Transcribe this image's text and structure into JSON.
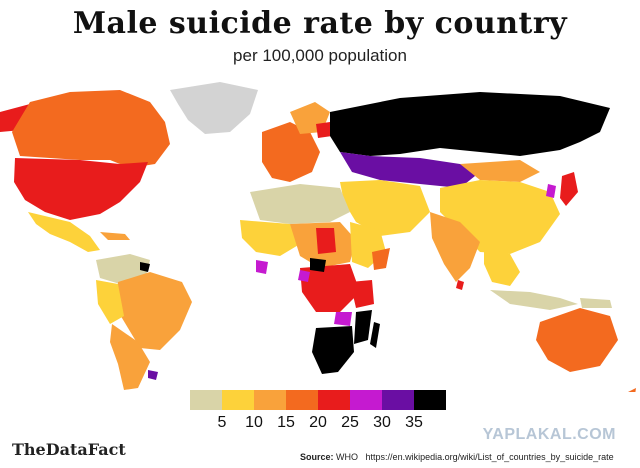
{
  "title": "Male suicide rate by country",
  "subtitle": "per 100,000 population",
  "legend": {
    "colors": [
      "#d9d4a8",
      "#fdd23a",
      "#f9a23b",
      "#f36a1f",
      "#e81c1c",
      "#c51ad0",
      "#6a0ea3",
      "#000000"
    ],
    "labels": [
      "5",
      "10",
      "15",
      "20",
      "25",
      "30",
      "35"
    ]
  },
  "colors": {
    "no_data": "#d3d3d3",
    "ocean": "#ffffff"
  },
  "brand": "TheDataFact",
  "watermark": "YAPLAKAL.COM",
  "source": {
    "label": "Source:",
    "org": "WHO",
    "url": "https://en.wikipedia.org/wiki/List_of_countries_by_suicide_rate"
  }
}
